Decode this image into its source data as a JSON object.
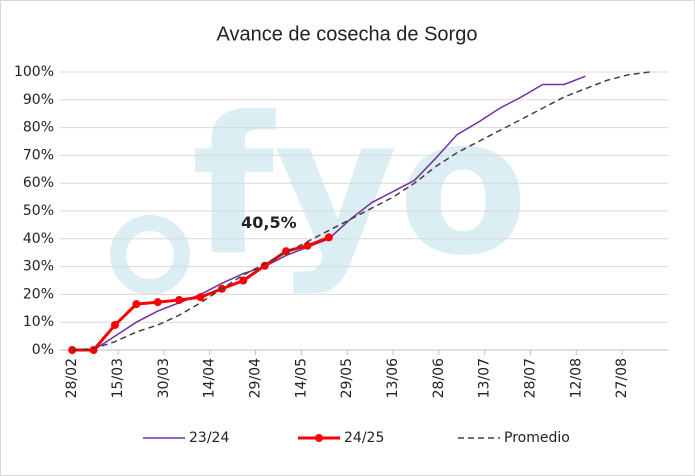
{
  "chart_data": {
    "type": "line",
    "title": "Avance de cosecha de Sorgo",
    "watermark": "fyo",
    "xlim": [
      -4,
      195
    ],
    "xticks": [
      {
        "value": 0,
        "label": "28/02"
      },
      {
        "value": 15,
        "label": "15/03"
      },
      {
        "value": 30,
        "label": "30/03"
      },
      {
        "value": 45,
        "label": "14/04"
      },
      {
        "value": 60,
        "label": "29/04"
      },
      {
        "value": 75,
        "label": "14/05"
      },
      {
        "value": 90,
        "label": "29/05"
      },
      {
        "value": 105,
        "label": "13/06"
      },
      {
        "value": 120,
        "label": "28/06"
      },
      {
        "value": 135,
        "label": "13/07"
      },
      {
        "value": 150,
        "label": "28/07"
      },
      {
        "value": 165,
        "label": "12/08"
      },
      {
        "value": 180,
        "label": "27/08"
      }
    ],
    "ylim": [
      0,
      100
    ],
    "yticks": [
      {
        "value": 0,
        "label": "0%"
      },
      {
        "value": 10,
        "label": "10%"
      },
      {
        "value": 20,
        "label": "20%"
      },
      {
        "value": 30,
        "label": "30%"
      },
      {
        "value": 40,
        "label": "40%"
      },
      {
        "value": 50,
        "label": "50%"
      },
      {
        "value": 60,
        "label": "60%"
      },
      {
        "value": 70,
        "label": "70%"
      },
      {
        "value": 80,
        "label": "80%"
      },
      {
        "value": 90,
        "label": "90%"
      },
      {
        "value": 100,
        "label": "100%"
      }
    ],
    "grid": true,
    "legend": "bottom",
    "series": [
      {
        "name": "23/24",
        "color": "#7030a0",
        "style": "solid",
        "markers": false,
        "x": [
          0,
          7,
          14,
          21,
          28,
          35,
          42,
          49,
          56,
          63,
          70,
          77,
          84,
          91,
          98,
          105,
          112,
          119,
          126,
          133,
          140,
          147,
          154,
          161,
          168
        ],
        "values": [
          0,
          0,
          5,
          10,
          14,
          17,
          20,
          24,
          27.5,
          30,
          34,
          37,
          40,
          47,
          53,
          57,
          61,
          69,
          77.5,
          82,
          87,
          91,
          95.5,
          95.5,
          98.5
        ]
      },
      {
        "name": "24/25",
        "color": "#ff0000",
        "style": "solid",
        "markers": true,
        "x": [
          0,
          7,
          14,
          21,
          28,
          35,
          42,
          49,
          56,
          63,
          70,
          77,
          84
        ],
        "values": [
          0,
          0,
          9,
          16.5,
          17.2,
          18,
          19,
          22,
          25,
          30.3,
          35.5,
          37.5,
          40.5
        ],
        "value_labels": [
          null,
          null,
          null,
          null,
          null,
          null,
          null,
          null,
          null,
          null,
          null,
          null,
          "40,5%"
        ]
      },
      {
        "name": "Promedio",
        "color": "#404040",
        "style": "dashed",
        "markers": false,
        "x": [
          0,
          7,
          14,
          21,
          28,
          35,
          42,
          49,
          56,
          63,
          70,
          77,
          84,
          91,
          98,
          105,
          112,
          119,
          126,
          133,
          140,
          147,
          154,
          161,
          168,
          175,
          182,
          189
        ],
        "values": [
          0,
          0.5,
          3,
          6.5,
          9,
          12.5,
          17,
          22,
          27,
          31,
          35,
          39,
          43,
          47,
          51,
          55,
          60,
          66,
          71,
          75,
          79,
          83,
          87,
          91,
          94,
          97,
          99,
          100
        ]
      }
    ]
  }
}
